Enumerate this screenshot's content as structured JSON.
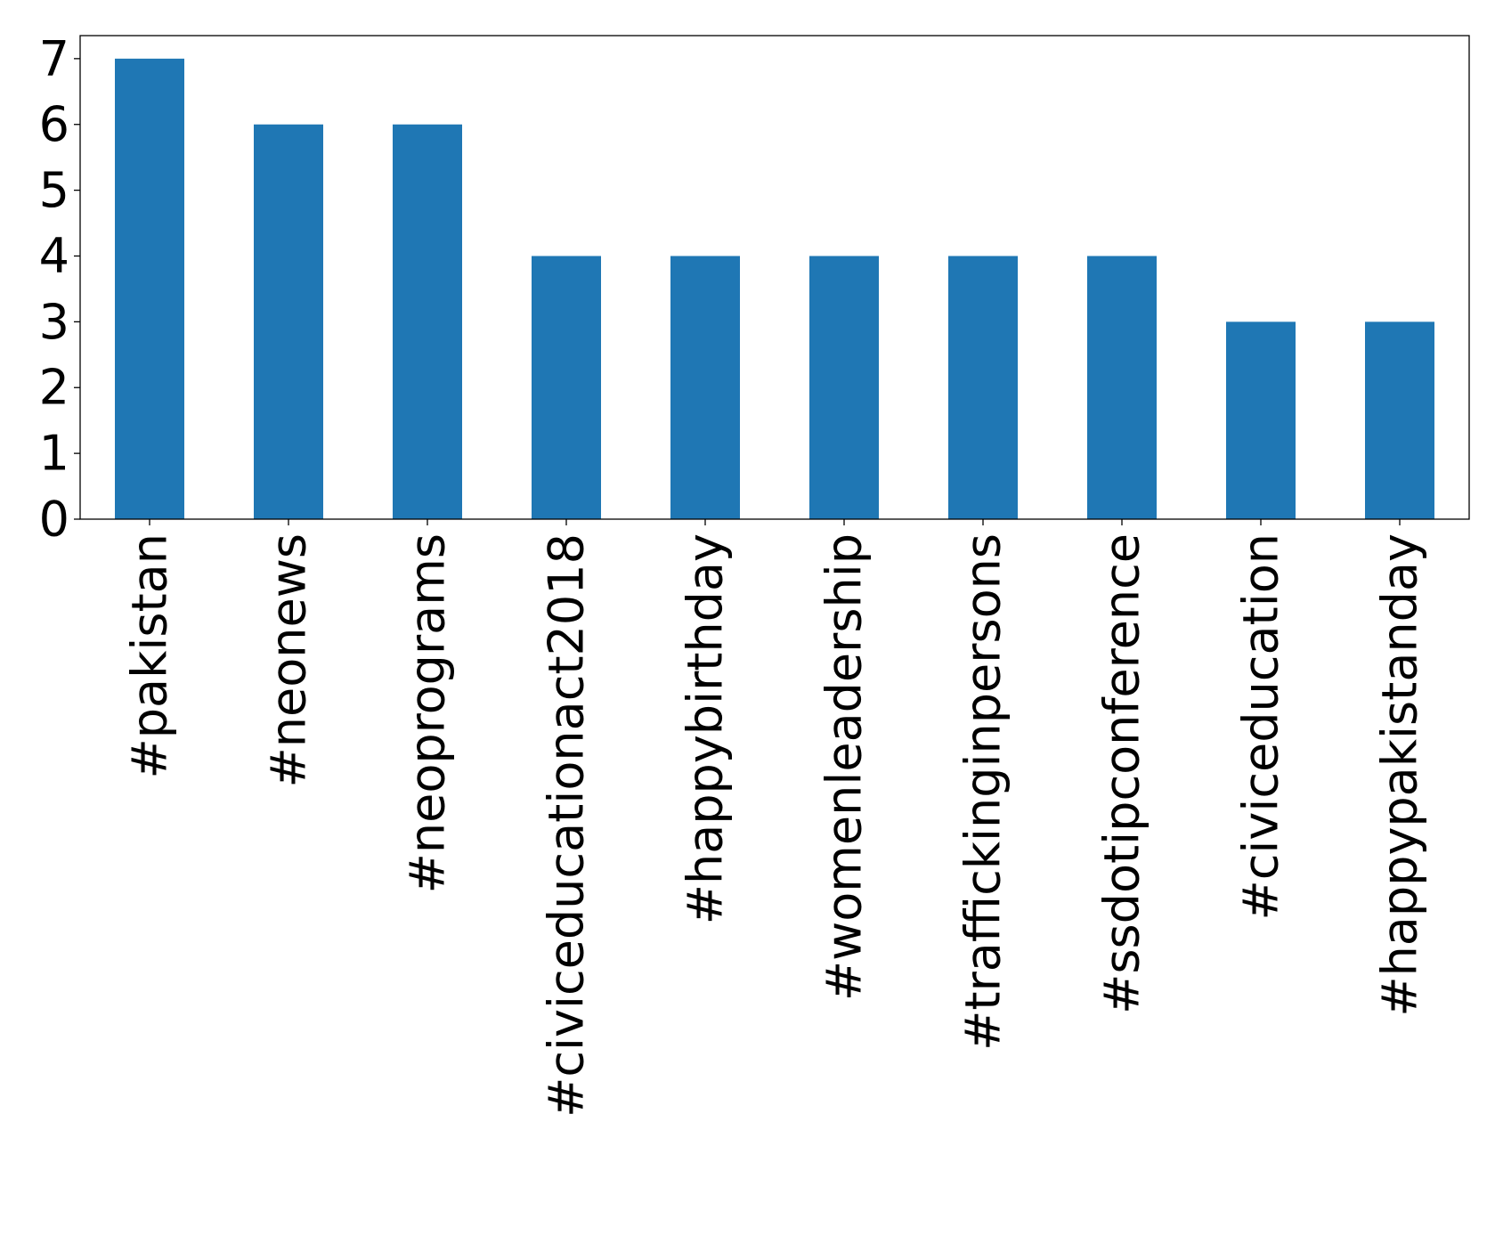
{
  "chart_data": {
    "type": "bar",
    "title": "",
    "xlabel": "",
    "ylabel": "",
    "categories": [
      "#pakistan",
      "#neonews",
      "#neoprograms",
      "#civiceducationact2018",
      "#happybirthday",
      "#womenleadership",
      "#traffickinginpersons",
      "#ssdotipconference",
      "#civiceducation",
      "#happypakistanday"
    ],
    "values": [
      7,
      6,
      6,
      4,
      4,
      4,
      4,
      4,
      3,
      3
    ],
    "ylim": [
      0,
      7.35
    ],
    "yticks": [
      0,
      1,
      2,
      3,
      4,
      5,
      6,
      7
    ],
    "grid": false,
    "legend": "none",
    "bar_color": "#1f77b4"
  }
}
